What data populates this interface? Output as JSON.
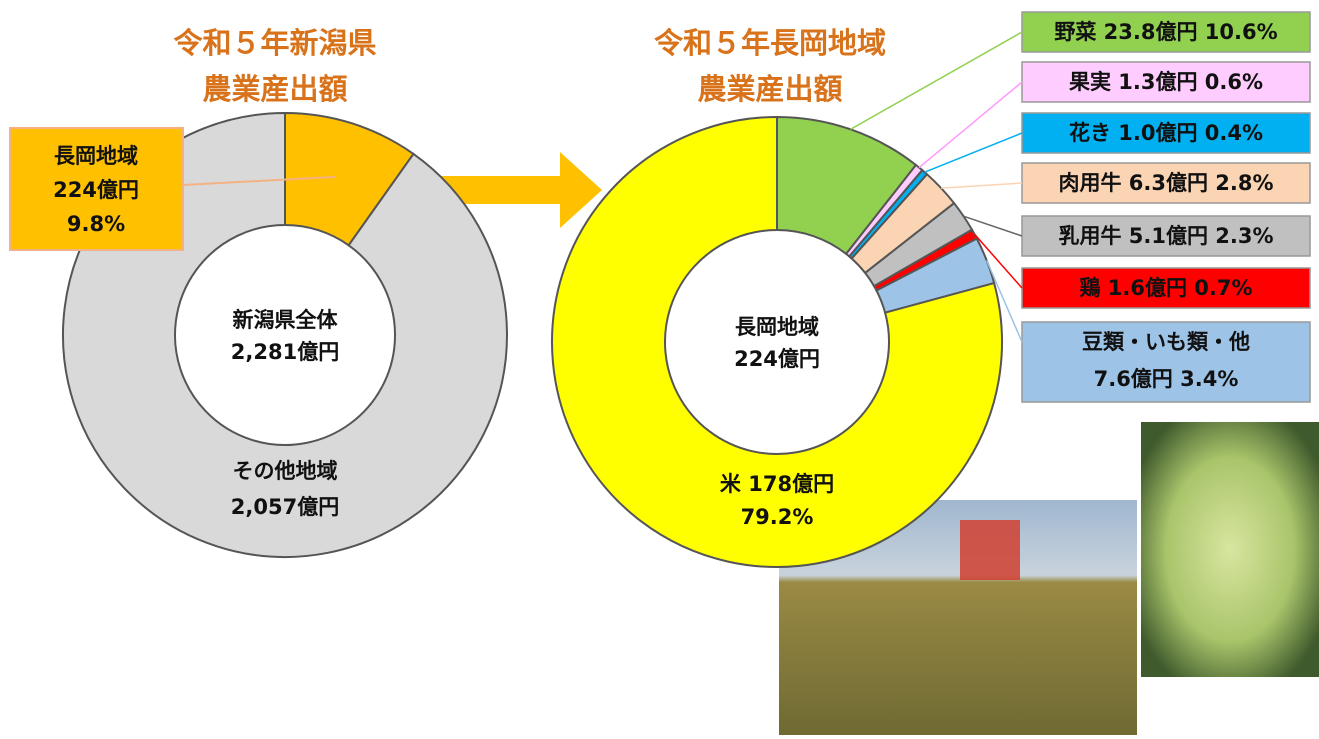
{
  "chart_data": [
    {
      "type": "donut",
      "title": [
        "令和５年新潟県",
        "農業産出額"
      ],
      "categories": [
        "長岡地域",
        "その他地域"
      ],
      "values": [
        224,
        2057
      ],
      "value_labels": [
        "224億円",
        "2,057億円"
      ],
      "colors": [
        "#ffc000",
        "#d9d9d9"
      ],
      "callout_percent": {
        "value": 9.8,
        "label": "9.8%"
      },
      "center": {
        "label": "新潟県全体",
        "value": 2281,
        "value_label": "2,281億円"
      }
    },
    {
      "type": "donut",
      "title": [
        "令和５年長岡地域",
        "農業産出額"
      ],
      "categories": [
        "野菜",
        "果実",
        "花き",
        "肉用牛",
        "乳用牛",
        "鶏",
        "豆類・いも類・他",
        "米"
      ],
      "values": [
        23.8,
        1.3,
        1.0,
        6.3,
        5.1,
        1.6,
        7.6,
        178
      ],
      "value_labels": [
        "23.8億円",
        "1.3億円",
        "1.0億円",
        "6.3億円",
        "5.1億円",
        "1.6億円",
        "7.6億円",
        "178億円"
      ],
      "percents": [
        10.6,
        0.6,
        0.4,
        2.8,
        2.3,
        0.7,
        3.4,
        79.2
      ],
      "percent_labels": [
        "10.6%",
        "0.6%",
        "0.4%",
        "2.8%",
        "2.3%",
        "0.7%",
        "3.4%",
        "79.2%"
      ],
      "colors": [
        "#92d050",
        "#ffccff",
        "#00b0f0",
        "#fbd4b4",
        "#c0c0c0",
        "#ff0000",
        "#9dc3e6",
        "#ffff00"
      ],
      "center": {
        "label": "長岡地域",
        "value": 224,
        "value_label": "224億円"
      }
    }
  ]
}
